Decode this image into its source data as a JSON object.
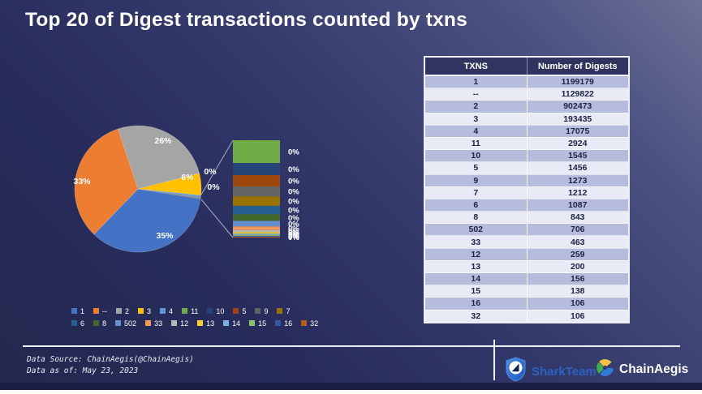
{
  "title": "Top 20 of Digest transactions counted by txns",
  "table": {
    "headers": [
      "TXNS",
      "Number of Digests"
    ],
    "rows": [
      [
        "1",
        "1199179"
      ],
      [
        "--",
        "1129822"
      ],
      [
        "2",
        "902473"
      ],
      [
        "3",
        "193435"
      ],
      [
        "4",
        "17075"
      ],
      [
        "11",
        "2924"
      ],
      [
        "10",
        "1545"
      ],
      [
        "5",
        "1456"
      ],
      [
        "9",
        "1273"
      ],
      [
        "7",
        "1212"
      ],
      [
        "6",
        "1087"
      ],
      [
        "8",
        "843"
      ],
      [
        "502",
        "706"
      ],
      [
        "33",
        "463"
      ],
      [
        "12",
        "259"
      ],
      [
        "13",
        "200"
      ],
      [
        "14",
        "156"
      ],
      [
        "15",
        "138"
      ],
      [
        "16",
        "106"
      ],
      [
        "32",
        "106"
      ]
    ]
  },
  "chart_data": {
    "type": "pie",
    "variant": "bar-of-pie",
    "title": "Top 20 of Digest transactions counted by txns",
    "categories": [
      "1",
      "--",
      "2",
      "3",
      "4",
      "11",
      "10",
      "5",
      "9",
      "7",
      "6",
      "8",
      "502",
      "33",
      "12",
      "13",
      "14",
      "15",
      "16",
      "32"
    ],
    "values": [
      1199179,
      1129822,
      902473,
      193435,
      17075,
      2924,
      1545,
      1456,
      1273,
      1212,
      1087,
      843,
      706,
      463,
      259,
      200,
      156,
      138,
      106,
      106
    ],
    "colors": [
      "#4472C4",
      "#ED7D31",
      "#A5A5A5",
      "#FFC000",
      "#5B9BD5",
      "#70AD47",
      "#264478",
      "#9E480E",
      "#636363",
      "#997300",
      "#255E91",
      "#43682B",
      "#698ED0",
      "#F1975A",
      "#B7B7B7",
      "#FFCD33",
      "#7CAFDD",
      "#8CC168",
      "#335AA1",
      "#B85C1C"
    ],
    "pie_slice_count": 5,
    "other_slice_color": "#7F7F7F",
    "pie_labels": [
      "35%",
      "33%",
      "26%",
      "6%",
      "0%",
      "0%"
    ],
    "bar_segment_label": "0%",
    "start_angle_deg": 99,
    "legend_position": "bottom"
  },
  "footer": {
    "source_line": "Data Source: ChainAegis(@ChainAegis)",
    "asof_line": "Data as of: May 23, 2023"
  },
  "brand": {
    "sharkteam_label": "SharkTeam",
    "chainaegis_label": "ChainAegis",
    "sharkteam_blue": "#2e66c9",
    "chainaegis_yellow": "#F6C243",
    "chainaegis_green": "#3DAE49",
    "chainaegis_blue": "#2E7CD6"
  }
}
